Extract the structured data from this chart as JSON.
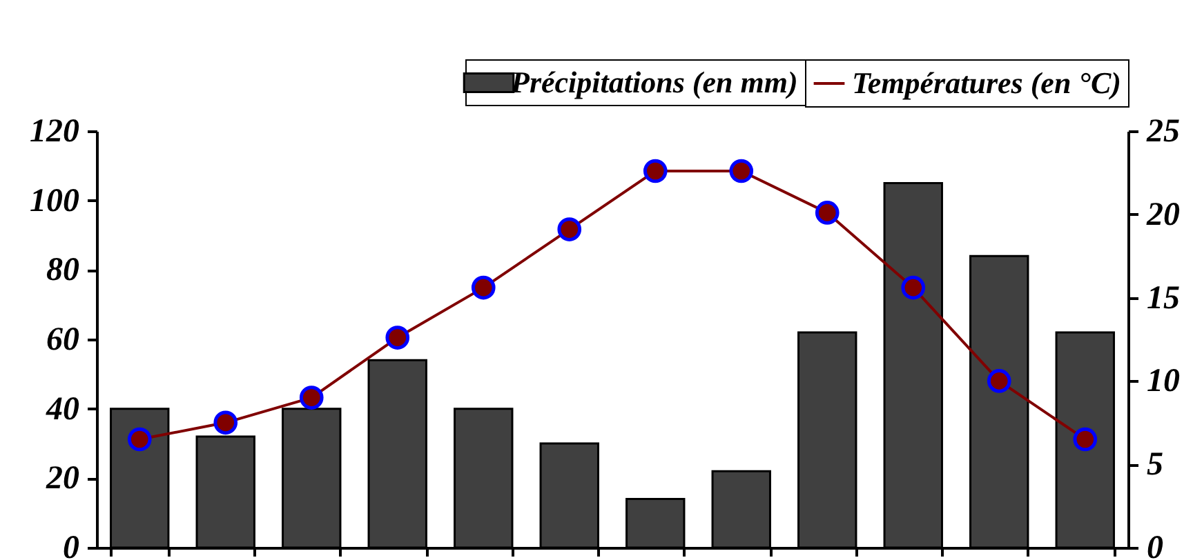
{
  "chart_data": {
    "type": "bar",
    "categories": [
      null,
      null,
      null,
      null,
      null,
      null,
      null,
      null,
      null,
      null,
      null,
      null
    ],
    "series": [
      {
        "name": "Précipitations (en mm)",
        "type": "bar",
        "color": "#404040",
        "values": [
          40,
          32,
          40,
          54,
          40,
          30,
          14,
          22,
          62,
          105,
          84,
          62
        ]
      },
      {
        "name": "Températures (en °C)",
        "type": "line",
        "axis": "y2",
        "color": "#800000",
        "values": [
          6.5,
          7.5,
          9.0,
          12.6,
          15.6,
          19.1,
          22.6,
          22.6,
          20.1,
          15.6,
          10.0,
          6.5
        ]
      }
    ],
    "ylim": [
      0,
      120
    ],
    "yticks": [
      0,
      20,
      40,
      60,
      80,
      100,
      120
    ],
    "y2lim": [
      0,
      25
    ],
    "y2ticks": [
      0,
      5,
      10,
      15,
      20,
      25
    ],
    "grid": false,
    "legend": "top right",
    "marker": "circle"
  }
}
